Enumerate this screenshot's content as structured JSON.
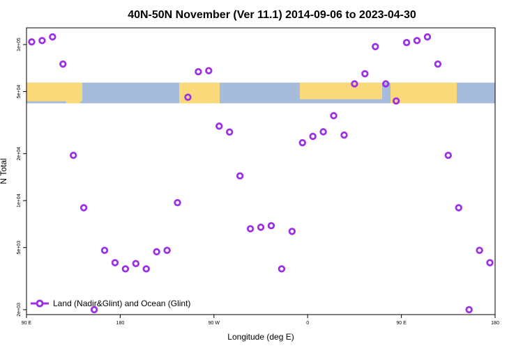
{
  "chart_data": {
    "type": "scatter",
    "title": "40N-50N November (Ver 11.1)   2014-09-06 to 2023-04-30",
    "xlabel": "Longitude (deg E)",
    "ylabel": "N Total",
    "x_ticks": [
      {
        "value": 90,
        "label": "90 E"
      },
      {
        "value": 180,
        "label": "180"
      },
      {
        "value": 270,
        "label": "90 W"
      },
      {
        "value": 360,
        "label": "0"
      },
      {
        "value": 450,
        "label": "90 E"
      },
      {
        "value": 540,
        "label": "180"
      }
    ],
    "y_ticks": [
      {
        "value": 2000,
        "label": "2e+03"
      },
      {
        "value": 5000,
        "label": "5e+03"
      },
      {
        "value": 10000,
        "label": "1e+04"
      },
      {
        "value": 20000,
        "label": "2e+04"
      },
      {
        "value": 50000,
        "label": "5e+04"
      },
      {
        "value": 100000,
        "label": "1e+05"
      }
    ],
    "xlim": [
      90,
      540
    ],
    "ylim": [
      1860,
      128000
    ],
    "y_scale": "log",
    "series": [
      {
        "name": "Land (Nadir&Glint) and Ocean (Glint)",
        "color": "#9b30e8",
        "marker": "open-circle",
        "x": [
          95,
          105,
          115,
          125,
          135,
          145,
          155,
          165,
          175,
          185,
          195,
          205,
          215,
          225,
          235,
          245,
          255,
          265,
          275,
          285,
          295,
          305,
          315,
          325,
          335,
          345,
          355,
          365,
          375,
          385,
          395,
          405,
          415,
          425,
          435,
          445,
          455,
          465,
          475,
          485,
          495,
          505,
          515,
          525,
          535
        ],
        "y": [
          104000,
          106000,
          112000,
          75000,
          19500,
          9000,
          2000,
          4800,
          4000,
          3650,
          3950,
          3650,
          4700,
          4800,
          9700,
          46000,
          67000,
          68000,
          30000,
          27500,
          14400,
          6600,
          6750,
          6900,
          3650,
          6350,
          23500,
          25800,
          27600,
          35000,
          26300,
          56000,
          65000,
          97000,
          56000,
          43500,
          103000,
          106000,
          112000,
          75000,
          19500,
          9000,
          2000,
          4800,
          4000
        ]
      }
    ],
    "legend": {
      "entries": [
        "Land (Nadir&Glint) and Ocean (Glint)"
      ],
      "position": "bottom-left"
    },
    "grid": false,
    "background_band": {
      "y_range": [
        42000,
        57000
      ],
      "description": "world map strip land and ocean"
    }
  },
  "colors": {
    "marker": "#9b30e8",
    "ocean": "#a7bcdc",
    "land": "#f9d97a"
  }
}
